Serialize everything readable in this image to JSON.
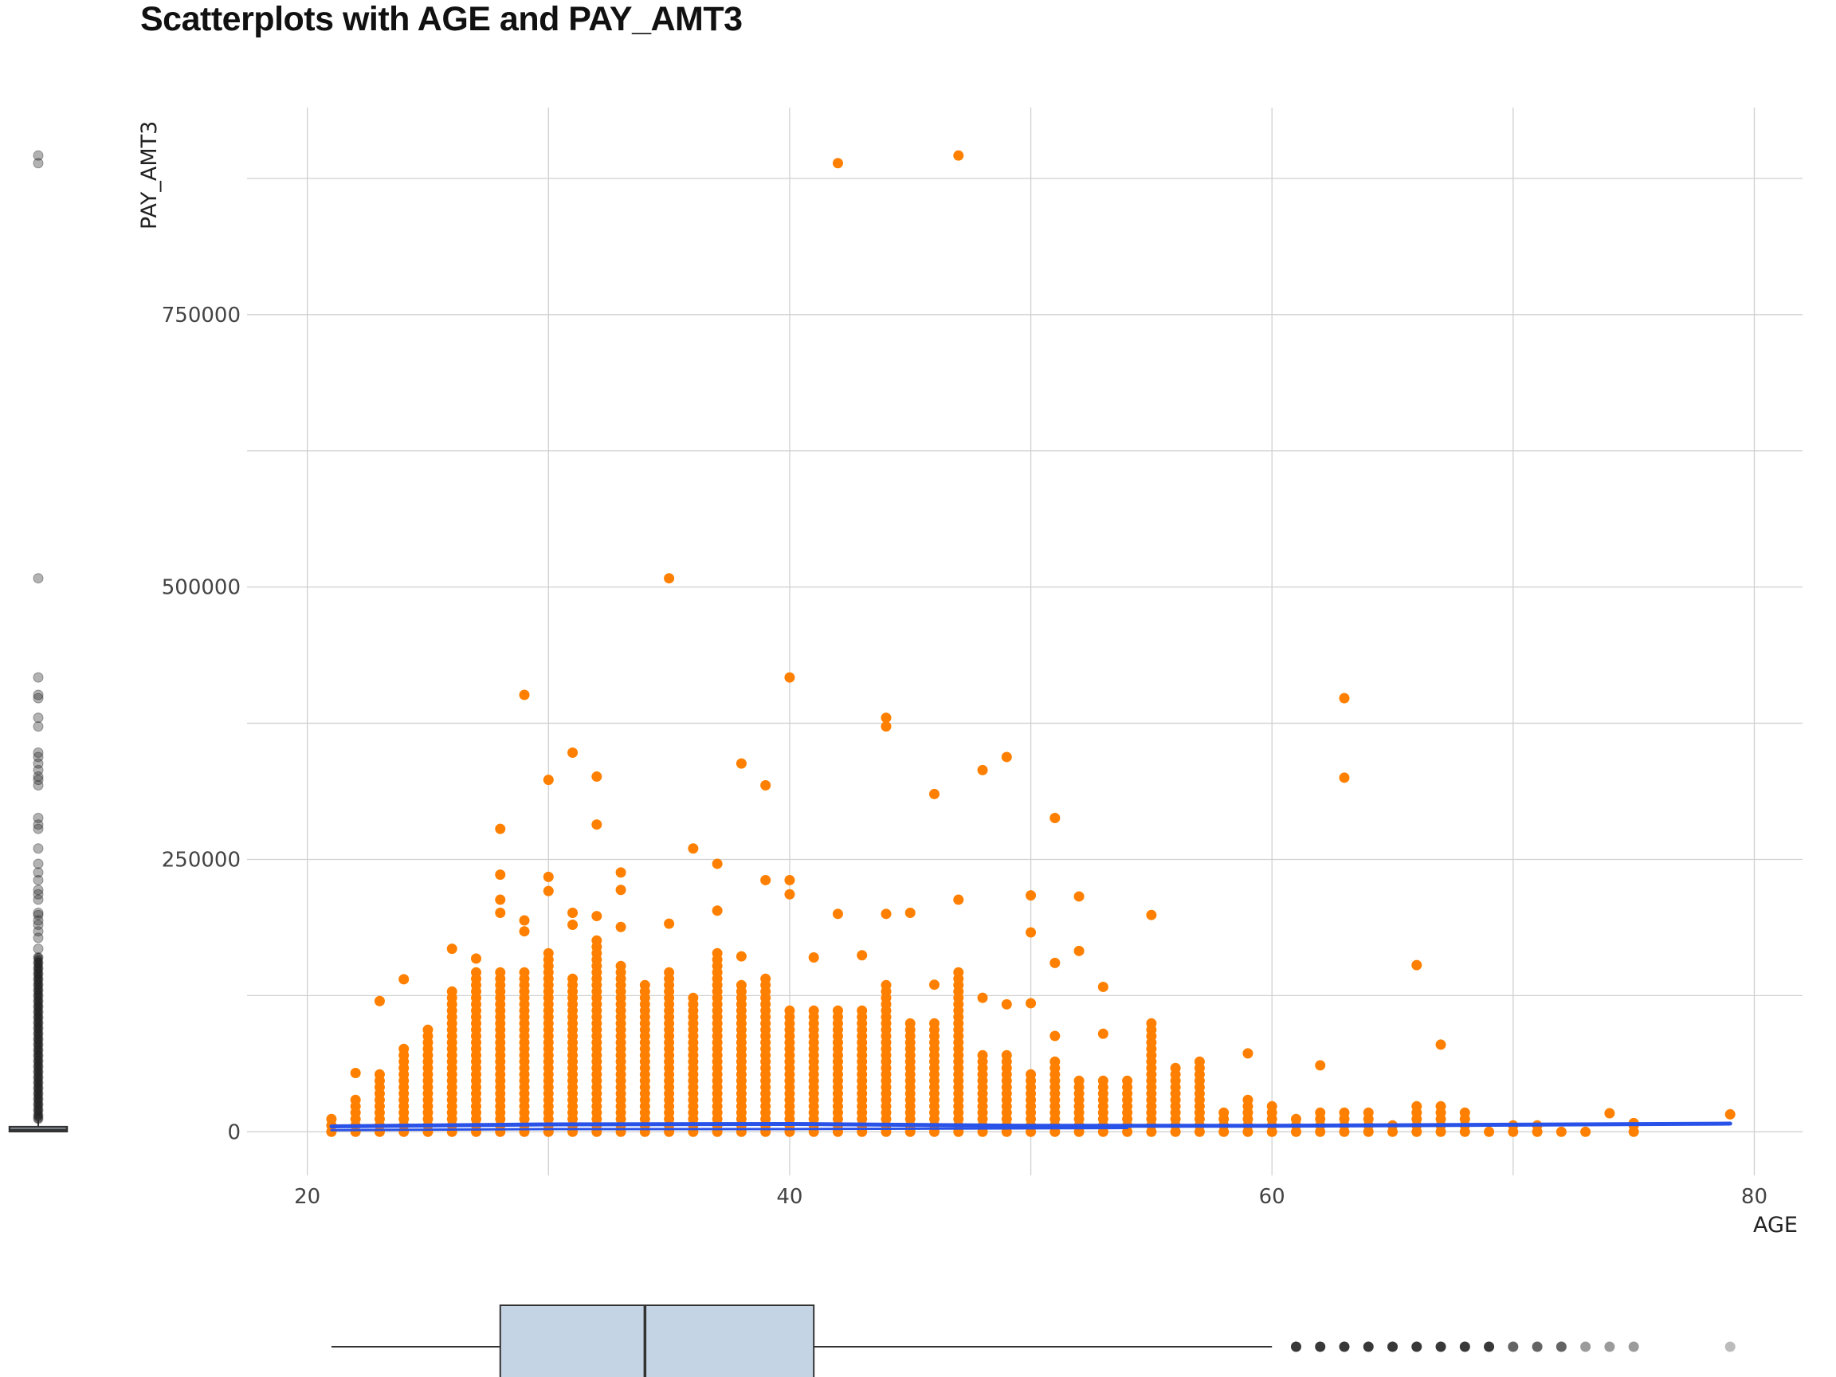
{
  "chart_data": {
    "type": "scatter",
    "title": "Scatterplots with AGE and PAY_AMT3",
    "xlabel": "AGE",
    "ylabel": "PAY_AMT3",
    "xlim": [
      17.5,
      82
    ],
    "ylim": [
      -40000,
      940000
    ],
    "x_ticks": [
      20,
      40,
      60,
      80
    ],
    "y_ticks": [
      0,
      250000,
      500000,
      750000
    ],
    "grid": true,
    "colors": {
      "points": "#FF8000",
      "trend": "#2952E8",
      "boxplot_fill": "#C5D4E4",
      "boxplot_line": "#333333",
      "outlier": "#222222",
      "grid": "#D0D0D0"
    },
    "outlier_points": [
      {
        "x": 42,
        "y": 889000
      },
      {
        "x": 47,
        "y": 896000
      },
      {
        "x": 35,
        "y": 508000
      },
      {
        "x": 40,
        "y": 417000
      },
      {
        "x": 29,
        "y": 401000
      },
      {
        "x": 63,
        "y": 398000
      },
      {
        "x": 44,
        "y": 380000
      },
      {
        "x": 44,
        "y": 372000
      },
      {
        "x": 31,
        "y": 348000
      },
      {
        "x": 49,
        "y": 344000
      },
      {
        "x": 38,
        "y": 338000
      },
      {
        "x": 48,
        "y": 332000
      },
      {
        "x": 32,
        "y": 326000
      },
      {
        "x": 30,
        "y": 323000
      },
      {
        "x": 63,
        "y": 325000
      },
      {
        "x": 39,
        "y": 318000
      },
      {
        "x": 46,
        "y": 310000
      },
      {
        "x": 51,
        "y": 288000
      },
      {
        "x": 32,
        "y": 282000
      },
      {
        "x": 28,
        "y": 278000
      },
      {
        "x": 36,
        "y": 260000
      },
      {
        "x": 37,
        "y": 246000
      },
      {
        "x": 33,
        "y": 238000
      },
      {
        "x": 28,
        "y": 236000
      },
      {
        "x": 30,
        "y": 234000
      },
      {
        "x": 39,
        "y": 231000
      },
      {
        "x": 40,
        "y": 231000
      },
      {
        "x": 33,
        "y": 222000
      },
      {
        "x": 30,
        "y": 221000
      },
      {
        "x": 40,
        "y": 218000
      },
      {
        "x": 50,
        "y": 217000
      },
      {
        "x": 52,
        "y": 216000
      },
      {
        "x": 28,
        "y": 213000
      },
      {
        "x": 47,
        "y": 213000
      },
      {
        "x": 37,
        "y": 203000
      },
      {
        "x": 28,
        "y": 201000
      },
      {
        "x": 31,
        "y": 201000
      },
      {
        "x": 42,
        "y": 200000
      },
      {
        "x": 44,
        "y": 200000
      },
      {
        "x": 45,
        "y": 201000
      },
      {
        "x": 55,
        "y": 199000
      },
      {
        "x": 32,
        "y": 198000
      },
      {
        "x": 29,
        "y": 194000
      },
      {
        "x": 35,
        "y": 191000
      },
      {
        "x": 31,
        "y": 190000
      },
      {
        "x": 33,
        "y": 188000
      },
      {
        "x": 29,
        "y": 184000
      },
      {
        "x": 50,
        "y": 183000
      },
      {
        "x": 26,
        "y": 168000
      },
      {
        "x": 52,
        "y": 166000
      },
      {
        "x": 38,
        "y": 161000
      },
      {
        "x": 41,
        "y": 160000
      },
      {
        "x": 43,
        "y": 162000
      },
      {
        "x": 27,
        "y": 159000
      },
      {
        "x": 51,
        "y": 155000
      },
      {
        "x": 66,
        "y": 153000
      },
      {
        "x": 24,
        "y": 140000
      },
      {
        "x": 46,
        "y": 135000
      },
      {
        "x": 53,
        "y": 133000
      },
      {
        "x": 48,
        "y": 123000
      },
      {
        "x": 23,
        "y": 120000
      },
      {
        "x": 49,
        "y": 117000
      },
      {
        "x": 50,
        "y": 118000
      },
      {
        "x": 53,
        "y": 90000
      },
      {
        "x": 51,
        "y": 88000
      },
      {
        "x": 67,
        "y": 80000
      },
      {
        "x": 59,
        "y": 72000
      },
      {
        "x": 62,
        "y": 61000
      },
      {
        "x": 22,
        "y": 54000
      },
      {
        "x": 74,
        "y": 17000
      },
      {
        "x": 79,
        "y": 16000
      },
      {
        "x": 75,
        "y": 8000
      }
    ],
    "dense_columns": [
      {
        "x": 21,
        "max": 12000
      },
      {
        "x": 22,
        "max": 34000
      },
      {
        "x": 23,
        "max": 58000
      },
      {
        "x": 24,
        "max": 80000
      },
      {
        "x": 25,
        "max": 98000
      },
      {
        "x": 26,
        "max": 130000
      },
      {
        "x": 27,
        "max": 150000
      },
      {
        "x": 28,
        "max": 150000
      },
      {
        "x": 29,
        "max": 148000
      },
      {
        "x": 30,
        "max": 165000
      },
      {
        "x": 31,
        "max": 145000
      },
      {
        "x": 32,
        "max": 178000
      },
      {
        "x": 33,
        "max": 155000
      },
      {
        "x": 34,
        "max": 140000
      },
      {
        "x": 35,
        "max": 148000
      },
      {
        "x": 36,
        "max": 125000
      },
      {
        "x": 37,
        "max": 165000
      },
      {
        "x": 38,
        "max": 135000
      },
      {
        "x": 39,
        "max": 143000
      },
      {
        "x": 40,
        "max": 115000
      },
      {
        "x": 41,
        "max": 115000
      },
      {
        "x": 42,
        "max": 115000
      },
      {
        "x": 43,
        "max": 115000
      },
      {
        "x": 44,
        "max": 135000
      },
      {
        "x": 45,
        "max": 105000
      },
      {
        "x": 46,
        "max": 105000
      },
      {
        "x": 47,
        "max": 150000
      },
      {
        "x": 48,
        "max": 75000
      },
      {
        "x": 49,
        "max": 75000
      },
      {
        "x": 50,
        "max": 55000
      },
      {
        "x": 51,
        "max": 65000
      },
      {
        "x": 52,
        "max": 50000
      },
      {
        "x": 53,
        "max": 48000
      },
      {
        "x": 54,
        "max": 52000
      },
      {
        "x": 55,
        "max": 100000
      },
      {
        "x": 56,
        "max": 60000
      },
      {
        "x": 57,
        "max": 68000
      },
      {
        "x": 58,
        "max": 20000
      },
      {
        "x": 59,
        "max": 35000
      },
      {
        "x": 60,
        "max": 27000
      },
      {
        "x": 61,
        "max": 14000
      },
      {
        "x": 62,
        "max": 22000
      },
      {
        "x": 63,
        "max": 18000
      },
      {
        "x": 64,
        "max": 22000
      },
      {
        "x": 65,
        "max": 10000
      },
      {
        "x": 66,
        "max": 24000
      },
      {
        "x": 67,
        "max": 25000
      },
      {
        "x": 68,
        "max": 20000
      },
      {
        "x": 69,
        "max": 4000
      },
      {
        "x": 70,
        "max": 8000
      },
      {
        "x": 71,
        "max": 6000
      },
      {
        "x": 72,
        "max": 4000
      },
      {
        "x": 73,
        "max": 5000
      },
      {
        "x": 75,
        "max": 8000
      }
    ],
    "trend_lines": [
      {
        "x": [
          21,
          30,
          40,
          50,
          60,
          70,
          79
        ],
        "y": [
          5000,
          6800,
          7200,
          5500,
          5500,
          6500,
          7500
        ]
      },
      {
        "x": [
          21,
          30,
          40,
          54
        ],
        "y": [
          1500,
          2500,
          2500,
          3500
        ]
      }
    ],
    "age_boxplot": {
      "whisker_low": 21,
      "q1": 28,
      "median": 34,
      "q3": 41,
      "whisker_high": 60,
      "outliers": [
        61,
        62,
        63,
        64,
        65,
        66,
        67,
        68,
        69,
        70,
        71,
        72,
        73,
        74,
        75,
        79
      ]
    },
    "pay_boxplot": {
      "whisker_low": 0,
      "q1": 390,
      "median": 1800,
      "q3": 4505,
      "whisker_high": 10680,
      "outliers": [
        896000,
        889000,
        508000,
        417000,
        401000,
        398000,
        380000,
        372000,
        348000,
        344000,
        338000,
        332000,
        326000,
        323000,
        318000,
        288000,
        282000,
        278000,
        260000,
        246000,
        238000,
        231000,
        222000,
        218000,
        213000,
        201000,
        199000,
        194000,
        190000,
        184000,
        178000,
        168000,
        160000,
        155000,
        150000,
        145000,
        140000,
        135000,
        130000,
        125000,
        120000,
        115000,
        110000,
        105000,
        100000,
        95000,
        90000,
        85000,
        80000,
        75000,
        70000,
        65000,
        60000,
        55000,
        50000,
        45000,
        40000,
        35000,
        30000,
        25000,
        20000,
        15000,
        12000
      ]
    }
  }
}
